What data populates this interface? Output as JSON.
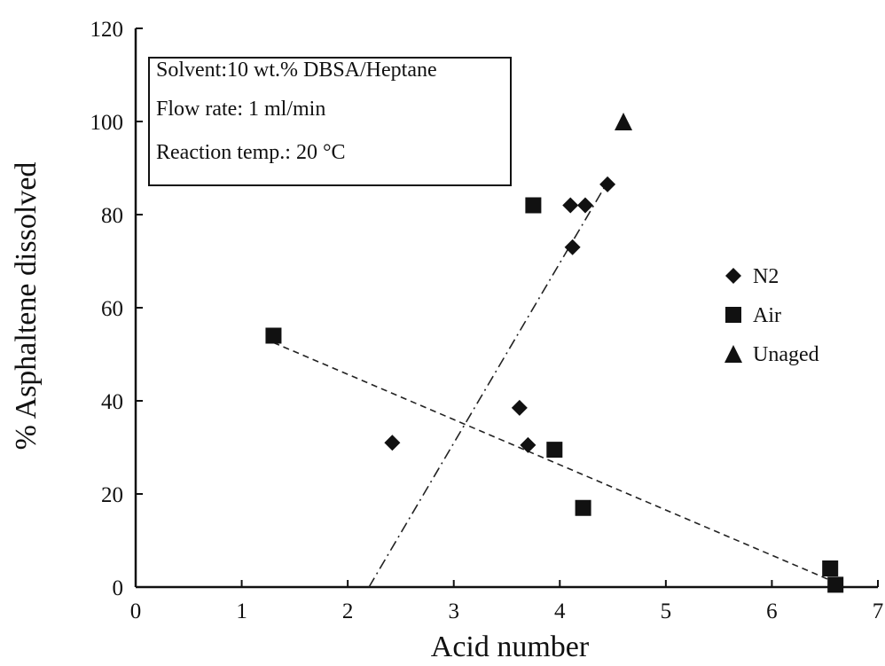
{
  "chart_data": {
    "type": "scatter",
    "title": "",
    "xlabel": "Acid number",
    "ylabel": "% Asphaltene dissolved",
    "xlim": [
      0,
      7
    ],
    "ylim": [
      0,
      120
    ],
    "x_ticks": [
      "0",
      "1",
      "2",
      "3",
      "4",
      "5",
      "6",
      "7"
    ],
    "y_ticks": [
      "0",
      "20",
      "40",
      "60",
      "80",
      "100",
      "120"
    ],
    "grid": false,
    "legend_position": "right",
    "series": [
      {
        "name": "N2",
        "marker": "diamond",
        "color": "#111111",
        "points": [
          {
            "x": 2.42,
            "y": 31
          },
          {
            "x": 3.62,
            "y": 38.5
          },
          {
            "x": 3.7,
            "y": 30.5
          },
          {
            "x": 4.1,
            "y": 82
          },
          {
            "x": 4.24,
            "y": 82
          },
          {
            "x": 4.12,
            "y": 73
          },
          {
            "x": 4.45,
            "y": 86.5
          }
        ]
      },
      {
        "name": "Air",
        "marker": "square",
        "color": "#111111",
        "points": [
          {
            "x": 1.3,
            "y": 54
          },
          {
            "x": 3.75,
            "y": 82
          },
          {
            "x": 3.95,
            "y": 29.5
          },
          {
            "x": 4.22,
            "y": 17
          },
          {
            "x": 6.55,
            "y": 4
          },
          {
            "x": 6.6,
            "y": 0.5
          }
        ]
      },
      {
        "name": "Unaged",
        "marker": "triangle",
        "color": "#111111",
        "points": [
          {
            "x": 4.6,
            "y": 100
          }
        ]
      }
    ],
    "trendlines": [
      {
        "style": "dash-dot",
        "from": {
          "x": 2.2,
          "y": 0
        },
        "to": {
          "x": 4.45,
          "y": 87
        }
      },
      {
        "style": "dashed",
        "from": {
          "x": 1.3,
          "y": 52.5
        },
        "to": {
          "x": 6.6,
          "y": 1
        }
      }
    ],
    "annotation_box": {
      "lines": [
        "Solvent:10 wt.% DBSA/Heptane",
        "Flow rate: 1 ml/min",
        "Reaction temp.: 20 °C"
      ]
    }
  }
}
